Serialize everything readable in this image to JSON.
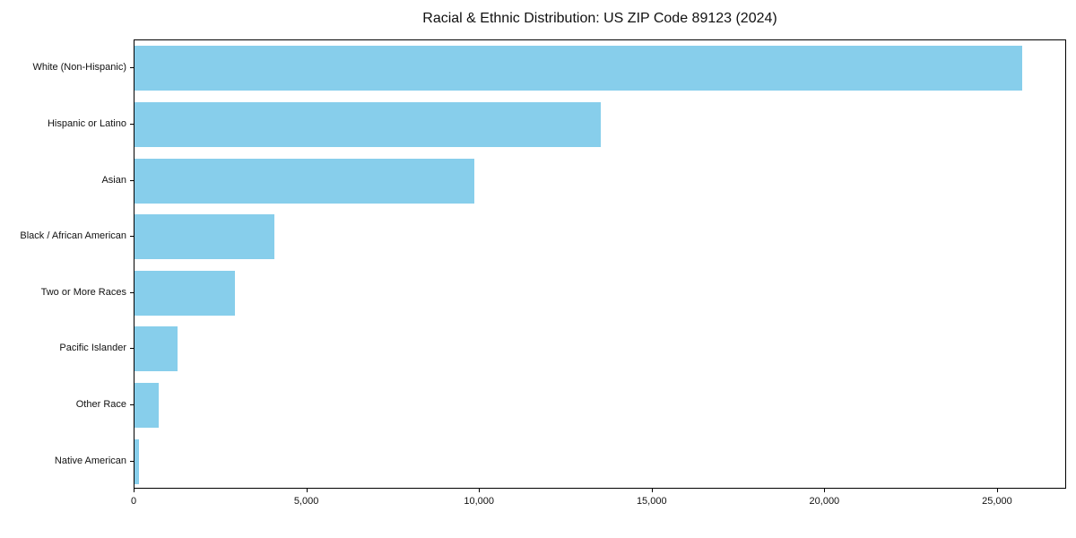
{
  "chart_data": {
    "type": "bar",
    "orientation": "horizontal",
    "title": "Racial & Ethnic Distribution: US ZIP Code 89123 (2024)",
    "categories": [
      "White (Non-Hispanic)",
      "Hispanic or Latino",
      "Asian",
      "Black / African American",
      "Two or More Races",
      "Pacific Islander",
      "Other Race",
      "Native American"
    ],
    "values": [
      25700,
      13500,
      9850,
      4050,
      2900,
      1250,
      700,
      120
    ],
    "xlabel": "",
    "ylabel": "",
    "xlim": [
      0,
      27000
    ],
    "xticks": [
      0,
      5000,
      10000,
      15000,
      20000,
      25000
    ],
    "xtick_labels": [
      "0",
      "5,000",
      "10,000",
      "15,000",
      "20,000",
      "25,000"
    ],
    "bar_color": "#87CEEB",
    "grid": false,
    "legend": false
  }
}
